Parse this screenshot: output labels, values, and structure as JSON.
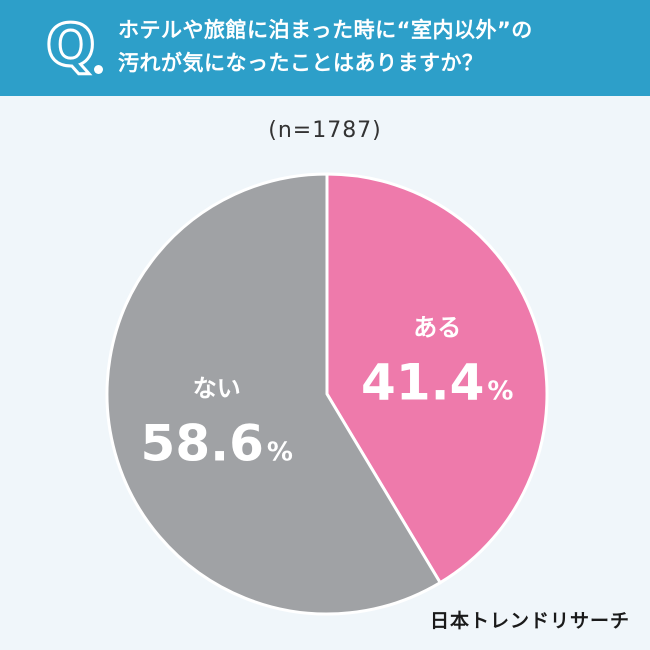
{
  "question": {
    "mark": "Q",
    "line1": "ホテルや旅館に泊まった時に“室内以外”の",
    "line2": "汚れが気になったことはありますか？"
  },
  "sample_label": "(n=1787)",
  "brand": "日本トレンドリサーチ",
  "colors": {
    "header": "#2d9fc9",
    "background": "#f0f6fa",
    "yes": "#ee7aab",
    "no": "#a0a2a5"
  },
  "chart_data": {
    "type": "pie",
    "title": "",
    "slices": [
      {
        "label": "ある",
        "value": 41.4,
        "display": "41.4",
        "unit": "%",
        "color": "#ee7aab"
      },
      {
        "label": "ない",
        "value": 58.6,
        "display": "58.6",
        "unit": "%",
        "color": "#a0a2a5"
      }
    ]
  }
}
